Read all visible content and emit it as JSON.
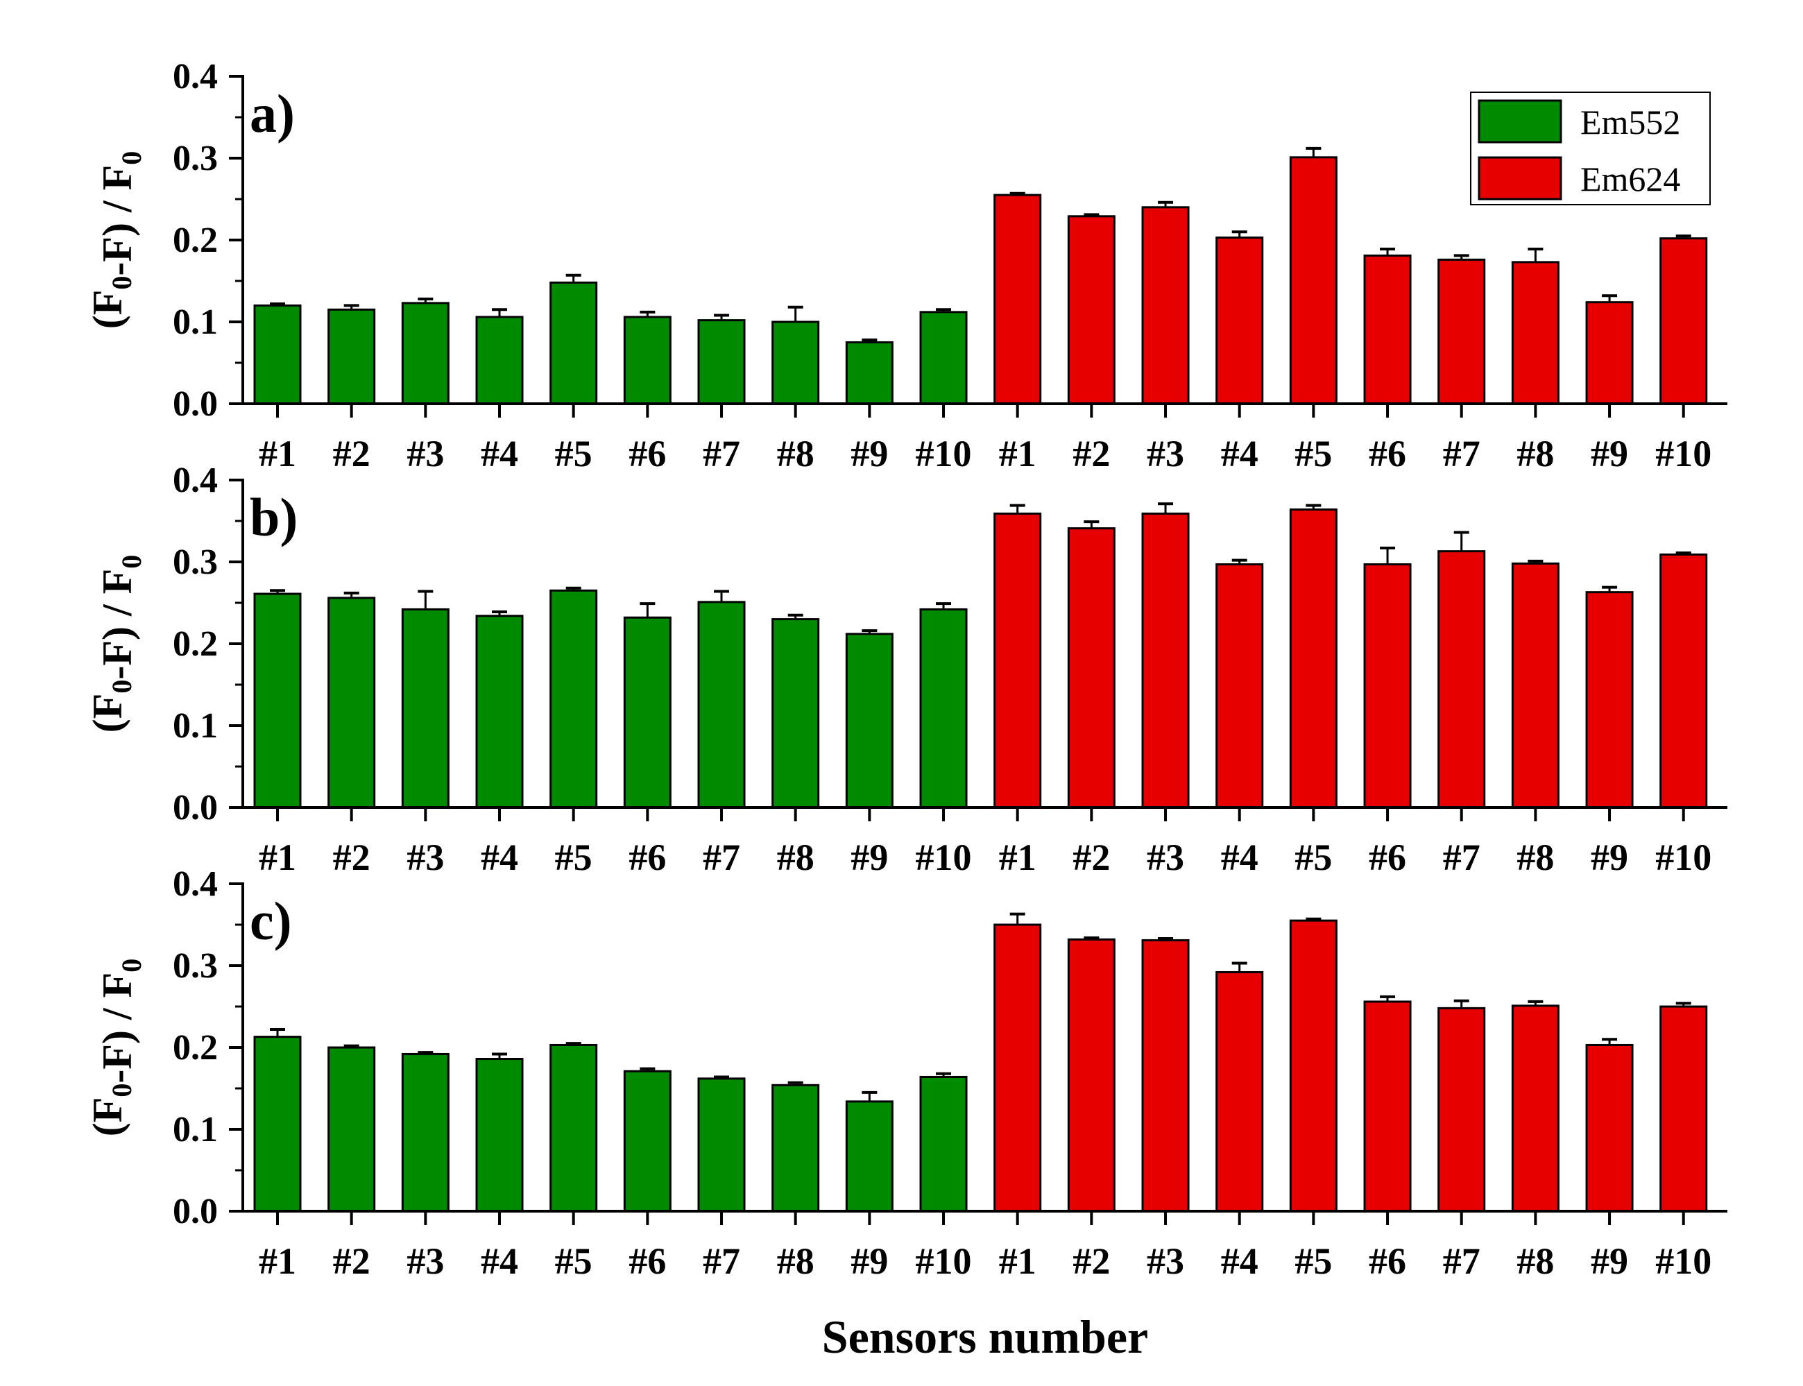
{
  "figure": {
    "xlabel": "Sensors number",
    "colors": {
      "Em552": "#008a00",
      "Em624": "#e60000",
      "axis": "#000000"
    }
  },
  "chart_data": [
    {
      "type": "bar",
      "panel": "a)",
      "ylabel": "(F0-F) / F0",
      "ylim": [
        0,
        0.4
      ],
      "yticks": [
        "0.0",
        "0.1",
        "0.2",
        "0.3",
        "0.4"
      ],
      "legend": {
        "placement": "top-right",
        "entries": [
          "Em552",
          "Em624"
        ]
      },
      "categories": [
        "#1",
        "#2",
        "#3",
        "#4",
        "#5",
        "#6",
        "#7",
        "#8",
        "#9",
        "#10"
      ],
      "series": [
        {
          "name": "Em552",
          "values": [
            0.12,
            0.115,
            0.123,
            0.106,
            0.148,
            0.106,
            0.102,
            0.1,
            0.075,
            0.112
          ],
          "errors": [
            0.002,
            0.005,
            0.005,
            0.009,
            0.009,
            0.006,
            0.006,
            0.018,
            0.003,
            0.003
          ]
        },
        {
          "name": "Em624",
          "values": [
            0.255,
            0.229,
            0.24,
            0.203,
            0.301,
            0.181,
            0.176,
            0.173,
            0.124,
            0.202
          ],
          "errors": [
            0.002,
            0.002,
            0.006,
            0.007,
            0.011,
            0.008,
            0.005,
            0.016,
            0.008,
            0.003
          ]
        }
      ]
    },
    {
      "type": "bar",
      "panel": "b)",
      "ylabel": "(F0-F) / F0",
      "ylim": [
        0,
        0.4
      ],
      "yticks": [
        "0.0",
        "0.1",
        "0.2",
        "0.3",
        "0.4"
      ],
      "categories": [
        "#1",
        "#2",
        "#3",
        "#4",
        "#5",
        "#6",
        "#7",
        "#8",
        "#9",
        "#10"
      ],
      "series": [
        {
          "name": "Em552",
          "values": [
            0.261,
            0.256,
            0.242,
            0.234,
            0.265,
            0.232,
            0.251,
            0.23,
            0.212,
            0.242
          ],
          "errors": [
            0.004,
            0.006,
            0.022,
            0.005,
            0.003,
            0.017,
            0.013,
            0.005,
            0.004,
            0.007
          ]
        },
        {
          "name": "Em624",
          "values": [
            0.359,
            0.341,
            0.359,
            0.297,
            0.364,
            0.297,
            0.313,
            0.298,
            0.263,
            0.309
          ],
          "errors": [
            0.01,
            0.008,
            0.012,
            0.005,
            0.005,
            0.02,
            0.023,
            0.003,
            0.006,
            0.002
          ]
        }
      ]
    },
    {
      "type": "bar",
      "panel": "c)",
      "ylabel": "(F0-F) / F0",
      "ylim": [
        0,
        0.4
      ],
      "yticks": [
        "0.0",
        "0.1",
        "0.2",
        "0.3",
        "0.4"
      ],
      "categories": [
        "#1",
        "#2",
        "#3",
        "#4",
        "#5",
        "#6",
        "#7",
        "#8",
        "#9",
        "#10"
      ],
      "series": [
        {
          "name": "Em552",
          "values": [
            0.213,
            0.2,
            0.192,
            0.186,
            0.203,
            0.171,
            0.162,
            0.154,
            0.134,
            0.164
          ],
          "errors": [
            0.009,
            0.002,
            0.002,
            0.006,
            0.002,
            0.003,
            0.002,
            0.003,
            0.011,
            0.004
          ]
        },
        {
          "name": "Em624",
          "values": [
            0.35,
            0.332,
            0.331,
            0.292,
            0.355,
            0.256,
            0.248,
            0.251,
            0.203,
            0.25
          ],
          "errors": [
            0.013,
            0.002,
            0.002,
            0.011,
            0.002,
            0.006,
            0.009,
            0.005,
            0.007,
            0.004
          ]
        }
      ]
    }
  ]
}
